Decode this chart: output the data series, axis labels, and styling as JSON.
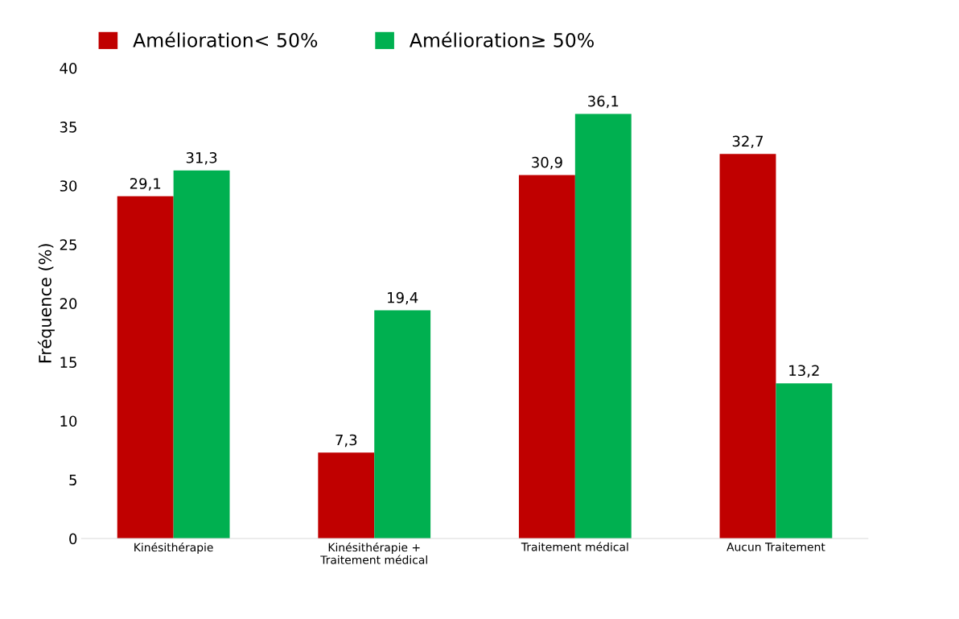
{
  "chart_data": {
    "type": "bar",
    "ylabel": "Fréquence (%)",
    "categories": [
      "Kinésithérapie",
      "Kinésithérapie +\nTraitement médical",
      "Traitement médical",
      "Aucun Traitement"
    ],
    "series": [
      {
        "name": "Amélioration< 50%",
        "color": "#c00000",
        "values": [
          29.1,
          7.3,
          30.9,
          32.7
        ],
        "value_labels": [
          "29,1",
          "7,3",
          "30,9",
          "32,7"
        ]
      },
      {
        "name": "Amélioration≥ 50%",
        "color": "#00b050",
        "values": [
          31.3,
          19.4,
          36.1,
          13.2
        ],
        "value_labels": [
          "31,3",
          "19,4",
          "36,1",
          "13,2"
        ]
      }
    ],
    "ylim": [
      0,
      40
    ],
    "yticks": [
      0,
      5,
      10,
      15,
      20,
      25,
      30,
      35,
      40
    ],
    "legend": "top left",
    "grid": false
  }
}
